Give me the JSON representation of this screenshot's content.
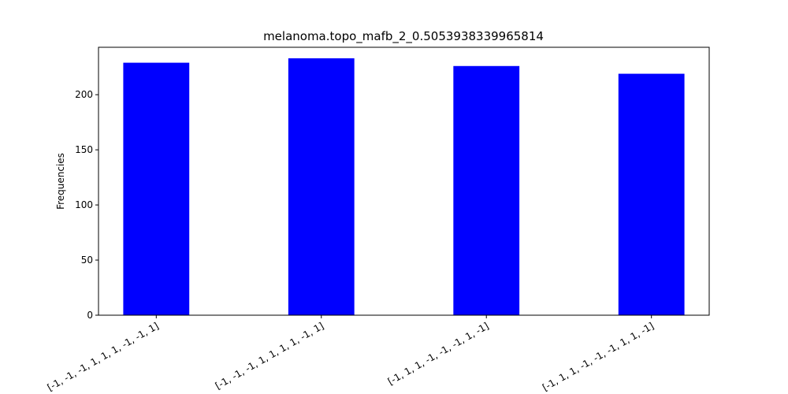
{
  "chart_data": {
    "type": "bar",
    "title": "melanoma.topo_mafb_2_0.5053938339965814",
    "xlabel": "",
    "ylabel": "Frequencies",
    "categories": [
      "[-1, -1, -1, 1, 1, 1, -1, -1, 1]",
      "[-1, -1, -1, 1, 1, 1, 1, -1, 1]",
      "[-1, 1, 1, -1, -1, -1, 1, -1]",
      "[-1, 1, 1, -1, -1, -1, 1, 1, -1]"
    ],
    "values": [
      229,
      233,
      226,
      219
    ],
    "ylim": [
      0,
      243
    ],
    "yticks": [
      0,
      50,
      100,
      150,
      200
    ],
    "grid": false,
    "bar_color": "#0000ff"
  }
}
